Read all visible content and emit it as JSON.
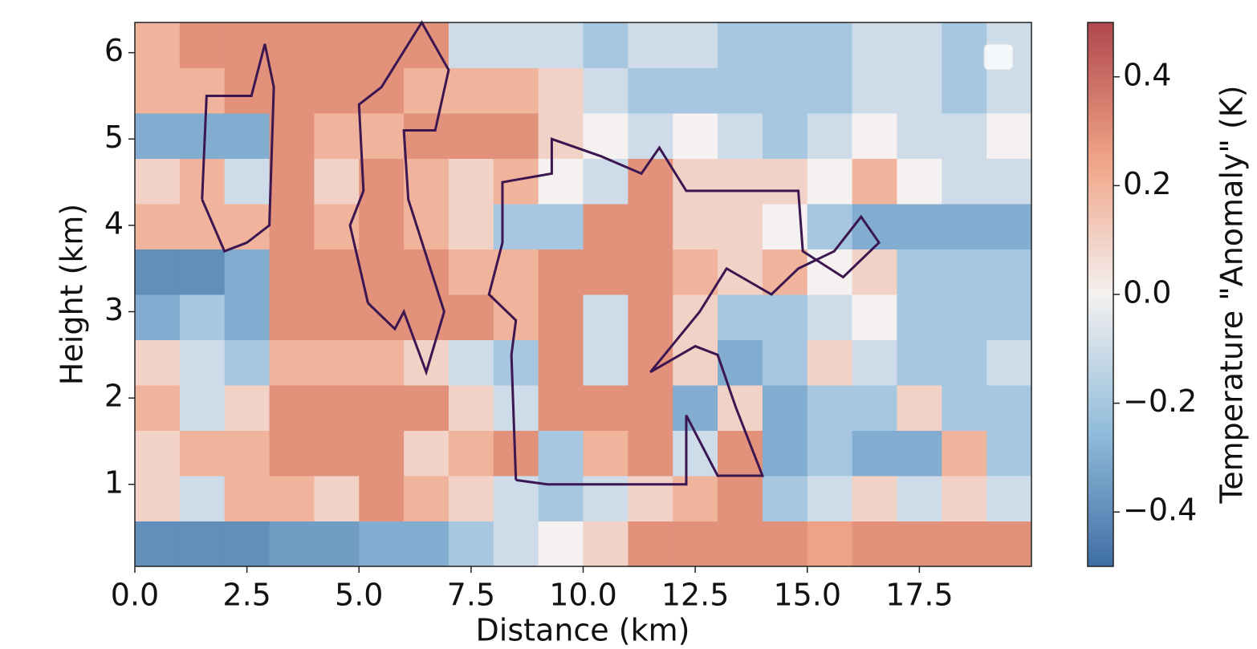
{
  "chart_data": {
    "type": "heatmap",
    "xlabel": "Distance (km)",
    "ylabel": "Height (km)",
    "colorbar_label": "Temperature \"Anomaly\" (K)",
    "xlim": [
      0,
      20
    ],
    "ylim": [
      0.05,
      6.35
    ],
    "xticks": [
      {
        "value": 0,
        "label": "0.0"
      },
      2.5,
      {
        "value": 5,
        "label": "5.0"
      },
      7.5,
      {
        "value": 10,
        "label": "10.0"
      },
      12.5,
      {
        "value": 15,
        "label": "15.0"
      },
      17.5
    ],
    "yticks": [
      1,
      2,
      3,
      4,
      5,
      6
    ],
    "clim": [
      -0.5,
      0.5
    ],
    "cticks": [
      {
        "value": -0.4,
        "label": "−0.4"
      },
      {
        "value": -0.2,
        "label": "−0.2"
      },
      {
        "value": 0,
        "label": "0.0"
      },
      0.2,
      0.4
    ],
    "colormap": [
      "#3f6ea5",
      "#93bddb",
      "#f4f1f0",
      "#efa386",
      "#b0474e"
    ],
    "z": [
      [
        -0.4,
        -0.4,
        -0.4,
        -0.35,
        -0.35,
        -0.3,
        -0.3,
        -0.2,
        -0.1,
        0,
        0.1,
        0.3,
        0.3,
        0.3,
        0.3,
        0.25,
        0.3,
        0.3,
        0.3,
        0.3
      ],
      [
        0.1,
        -0.1,
        0.2,
        0.2,
        0.1,
        0.3,
        0.2,
        0.1,
        -0.1,
        -0.2,
        -0.1,
        0.1,
        0.2,
        0.3,
        -0.2,
        -0.1,
        0.1,
        -0.1,
        0.1,
        -0.1
      ],
      [
        0.1,
        0.2,
        0.2,
        0.3,
        0.3,
        0.3,
        0.1,
        0.2,
        0.3,
        -0.2,
        0.2,
        0.3,
        -0.1,
        0.3,
        -0.3,
        -0.2,
        -0.3,
        -0.3,
        0.2,
        -0.2
      ],
      [
        0.2,
        -0.1,
        0.1,
        0.3,
        0.3,
        0.3,
        0.3,
        0.1,
        -0.1,
        0.3,
        0.3,
        0.3,
        -0.3,
        0.1,
        -0.3,
        -0.2,
        -0.2,
        0.1,
        -0.2,
        -0.2
      ],
      [
        0.1,
        -0.1,
        -0.2,
        0.2,
        0.2,
        0.2,
        0.1,
        -0.1,
        -0.2,
        0.3,
        -0.1,
        0.3,
        0.1,
        -0.3,
        -0.2,
        0.1,
        -0.1,
        -0.2,
        -0.2,
        -0.1
      ],
      [
        -0.3,
        -0.2,
        -0.3,
        0.3,
        0.3,
        0.3,
        0.3,
        0.3,
        0.2,
        0.3,
        -0.1,
        0.3,
        0.1,
        -0.2,
        -0.2,
        -0.1,
        0,
        -0.2,
        -0.2,
        -0.2
      ],
      [
        -0.4,
        -0.4,
        -0.3,
        0.3,
        0.3,
        0.3,
        0.3,
        0.2,
        0.2,
        0.3,
        0.3,
        0.3,
        0.2,
        0.1,
        0.2,
        0,
        0.1,
        -0.2,
        -0.2,
        -0.2
      ],
      [
        0.2,
        0.2,
        0.2,
        0.3,
        0.2,
        0.3,
        0.2,
        0.1,
        -0.2,
        -0.2,
        0.3,
        0.3,
        0.1,
        0.1,
        0,
        -0.2,
        -0.3,
        -0.3,
        -0.3,
        -0.3
      ],
      [
        0.1,
        0.2,
        -0.1,
        0.3,
        0.1,
        0.3,
        0.2,
        0.1,
        0.2,
        0,
        -0.1,
        0.3,
        0.1,
        0.1,
        0.1,
        0,
        0.2,
        0,
        -0.1,
        -0.1
      ],
      [
        -0.3,
        -0.3,
        -0.3,
        0.3,
        0.2,
        0.2,
        0.3,
        0.3,
        0.3,
        0.1,
        0,
        -0.1,
        0,
        -0.1,
        -0.2,
        -0.1,
        0,
        -0.1,
        -0.1,
        0
      ],
      [
        0.2,
        0.2,
        0.3,
        0.3,
        0.3,
        0.3,
        0.2,
        0.2,
        0.2,
        0.1,
        -0.1,
        -0.2,
        -0.2,
        -0.2,
        -0.2,
        -0.2,
        -0.1,
        -0.1,
        -0.2,
        -0.1
      ],
      [
        0.2,
        0.3,
        0.3,
        0.3,
        0.3,
        0.3,
        0.3,
        -0.1,
        -0.1,
        -0.1,
        -0.2,
        -0.1,
        -0.1,
        -0.2,
        -0.2,
        -0.2,
        -0.1,
        -0.1,
        -0.2,
        -0.1
      ]
    ],
    "contour_color": "#3b1650",
    "contours": [
      {
        "x": [
          8.5,
          9.2,
          12.3,
          12.3,
          13.0,
          14.0,
          13.4,
          13.0,
          12.5,
          11.5,
          12.6,
          13.2,
          14.2,
          14.8,
          15.6,
          16.2,
          16.6,
          15.8,
          14.9,
          14.8,
          12.3,
          11.7,
          11.3,
          10.4,
          9.3,
          9.3,
          8.2,
          8.2,
          7.9,
          8.5,
          8.4,
          8.5
        ],
        "y": [
          1.05,
          1.0,
          1.0,
          1.8,
          1.1,
          1.1,
          1.9,
          2.5,
          2.6,
          2.3,
          3.0,
          3.5,
          3.2,
          3.5,
          3.7,
          4.1,
          3.8,
          3.4,
          3.7,
          4.4,
          4.4,
          4.9,
          4.6,
          4.8,
          5.0,
          4.6,
          4.5,
          3.8,
          3.2,
          2.9,
          2.5,
          1.05
        ]
      },
      {
        "x": [
          1.5,
          2.0,
          2.5,
          3.0,
          3.1,
          2.9,
          2.6,
          1.6,
          1.5
        ],
        "y": [
          4.3,
          3.7,
          3.8,
          4.0,
          5.6,
          6.1,
          5.5,
          5.5,
          4.3
        ]
      },
      {
        "x": [
          5.2,
          5.8,
          6.0,
          6.5,
          6.9,
          6.1,
          6.0,
          6.7,
          7.0,
          6.4,
          5.5,
          5.0,
          5.1,
          4.8,
          5.2
        ],
        "y": [
          3.1,
          2.8,
          3.0,
          2.3,
          3.0,
          4.3,
          5.1,
          5.1,
          5.8,
          6.35,
          5.6,
          5.4,
          4.4,
          4.0,
          3.1
        ]
      }
    ]
  }
}
